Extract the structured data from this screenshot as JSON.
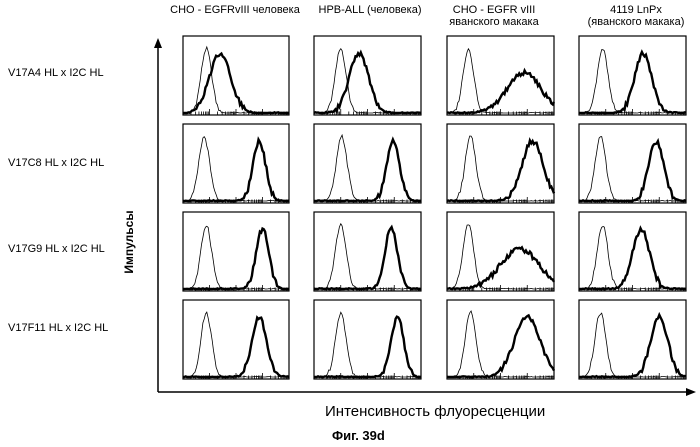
{
  "figure": {
    "columns": [
      {
        "line1": "CHO - EGFRvIII человека",
        "line2": ""
      },
      {
        "line1": "HPB-ALL (человека)",
        "line2": ""
      },
      {
        "line1": "CHO - EGFR vIII",
        "line2": "яванского макака"
      },
      {
        "line1": "4119 LnPx",
        "line2": "(яванского макака)"
      }
    ],
    "rows": [
      {
        "label": "V17A4 HL x I2C HL"
      },
      {
        "label": "V17C8 HL x I2C HL"
      },
      {
        "label": "V17G9 HL x I2C HL"
      },
      {
        "label": "V17F11 HL x I2C HL"
      }
    ],
    "y_axis_label": "Импульсы",
    "x_axis_label": "Интенсивность флуоресценции",
    "caption": "Фиг. 39d"
  },
  "chart_data": {
    "type": "histogram-grid",
    "description_units": "log fluorescence (0-1 panel fraction), relative counts",
    "panels": [
      {
        "row": 0,
        "col": 0,
        "control_peak": 0.22,
        "sample_peak": 0.35,
        "sample_spread": 0.1
      },
      {
        "row": 0,
        "col": 1,
        "control_peak": 0.25,
        "sample_peak": 0.42,
        "sample_spread": 0.09
      },
      {
        "row": 0,
        "col": 2,
        "control_peak": 0.2,
        "sample_peak": 0.72,
        "sample_spread": 0.16
      },
      {
        "row": 0,
        "col": 3,
        "control_peak": 0.22,
        "sample_peak": 0.6,
        "sample_spread": 0.08
      },
      {
        "row": 1,
        "col": 0,
        "control_peak": 0.2,
        "sample_peak": 0.72,
        "sample_spread": 0.06
      },
      {
        "row": 1,
        "col": 1,
        "control_peak": 0.26,
        "sample_peak": 0.74,
        "sample_spread": 0.06
      },
      {
        "row": 1,
        "col": 2,
        "control_peak": 0.22,
        "sample_peak": 0.8,
        "sample_spread": 0.1
      },
      {
        "row": 1,
        "col": 3,
        "control_peak": 0.2,
        "sample_peak": 0.72,
        "sample_spread": 0.07
      },
      {
        "row": 2,
        "col": 0,
        "control_peak": 0.22,
        "sample_peak": 0.75,
        "sample_spread": 0.06
      },
      {
        "row": 2,
        "col": 1,
        "control_peak": 0.25,
        "sample_peak": 0.72,
        "sample_spread": 0.06
      },
      {
        "row": 2,
        "col": 2,
        "control_peak": 0.2,
        "sample_peak": 0.68,
        "sample_spread": 0.18
      },
      {
        "row": 2,
        "col": 3,
        "control_peak": 0.22,
        "sample_peak": 0.58,
        "sample_spread": 0.08
      },
      {
        "row": 3,
        "col": 0,
        "control_peak": 0.22,
        "sample_peak": 0.72,
        "sample_spread": 0.07
      },
      {
        "row": 3,
        "col": 1,
        "control_peak": 0.25,
        "sample_peak": 0.78,
        "sample_spread": 0.06
      },
      {
        "row": 3,
        "col": 2,
        "control_peak": 0.22,
        "sample_peak": 0.75,
        "sample_spread": 0.12
      },
      {
        "row": 3,
        "col": 3,
        "control_peak": 0.2,
        "sample_peak": 0.75,
        "sample_spread": 0.08
      }
    ]
  }
}
